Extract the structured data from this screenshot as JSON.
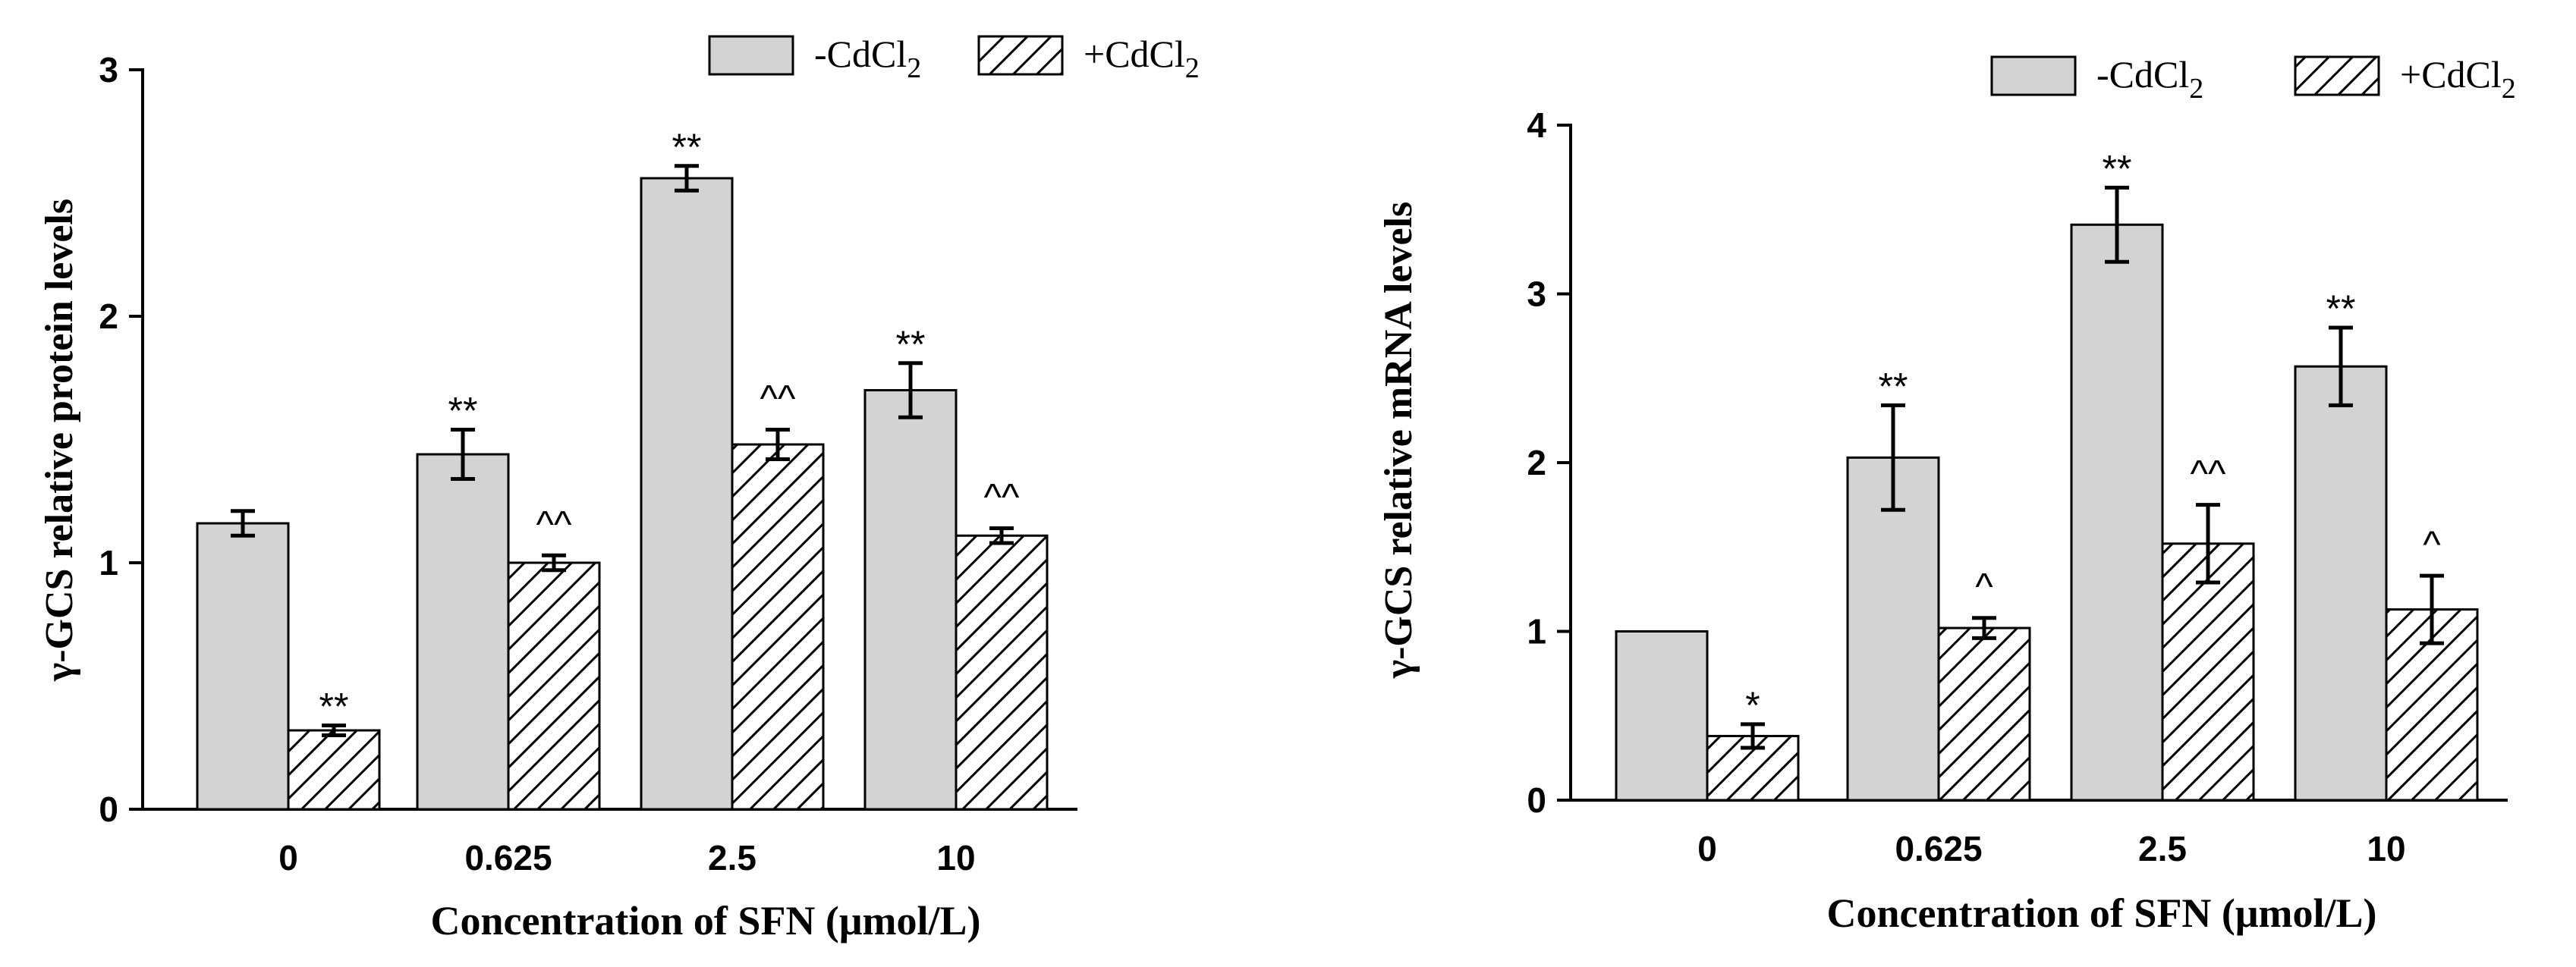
{
  "colors": {
    "solid_bar": "#d3d3d3",
    "outline": "#000000",
    "hatch": "#000000",
    "background": "#ffffff"
  },
  "chart_data": [
    {
      "type": "bar",
      "title": "",
      "xlabel": "Concentration of SFN (μmol/L)",
      "ylabel": "γ-GCS relative protein levels",
      "categories": [
        "0",
        "0.625",
        "2.5",
        "10"
      ],
      "ylim": [
        0,
        3
      ],
      "yticks": [
        "0",
        "1",
        "2",
        "3"
      ],
      "legend_position": "top-right",
      "series": [
        {
          "name": "-CdCl",
          "subscript": "2",
          "pattern": "solid",
          "values": [
            1.16,
            1.44,
            2.56,
            1.7
          ],
          "errors": [
            0.05,
            0.1,
            0.05,
            0.11
          ],
          "annotations": [
            "",
            "**",
            "**",
            "**"
          ]
        },
        {
          "name": "+CdCl",
          "subscript": "2",
          "pattern": "hatched",
          "values": [
            0.32,
            1.0,
            1.48,
            1.11
          ],
          "errors": [
            0.02,
            0.03,
            0.06,
            0.03
          ],
          "annotations": [
            "**",
            "^^",
            "^^",
            "^^"
          ]
        }
      ]
    },
    {
      "type": "bar",
      "title": "",
      "xlabel": "Concentration of SFN (μmol/L)",
      "ylabel": "γ-GCS relative mRNA levels",
      "categories": [
        "0",
        "0.625",
        "2.5",
        "10"
      ],
      "ylim": [
        0,
        4
      ],
      "yticks": [
        "0",
        "1",
        "2",
        "3",
        "4"
      ],
      "legend_position": "top-right",
      "series": [
        {
          "name": "-CdCl",
          "subscript": "2",
          "pattern": "solid",
          "values": [
            1.0,
            2.03,
            3.41,
            2.57
          ],
          "errors": [
            0.0,
            0.31,
            0.22,
            0.23
          ],
          "annotations": [
            "",
            "**",
            "**",
            "**"
          ]
        },
        {
          "name": "+CdCl",
          "subscript": "2",
          "pattern": "hatched",
          "values": [
            0.38,
            1.02,
            1.52,
            1.13
          ],
          "errors": [
            0.07,
            0.06,
            0.23,
            0.2
          ],
          "annotations": [
            "*",
            "^",
            "^^",
            "^"
          ]
        }
      ]
    }
  ]
}
